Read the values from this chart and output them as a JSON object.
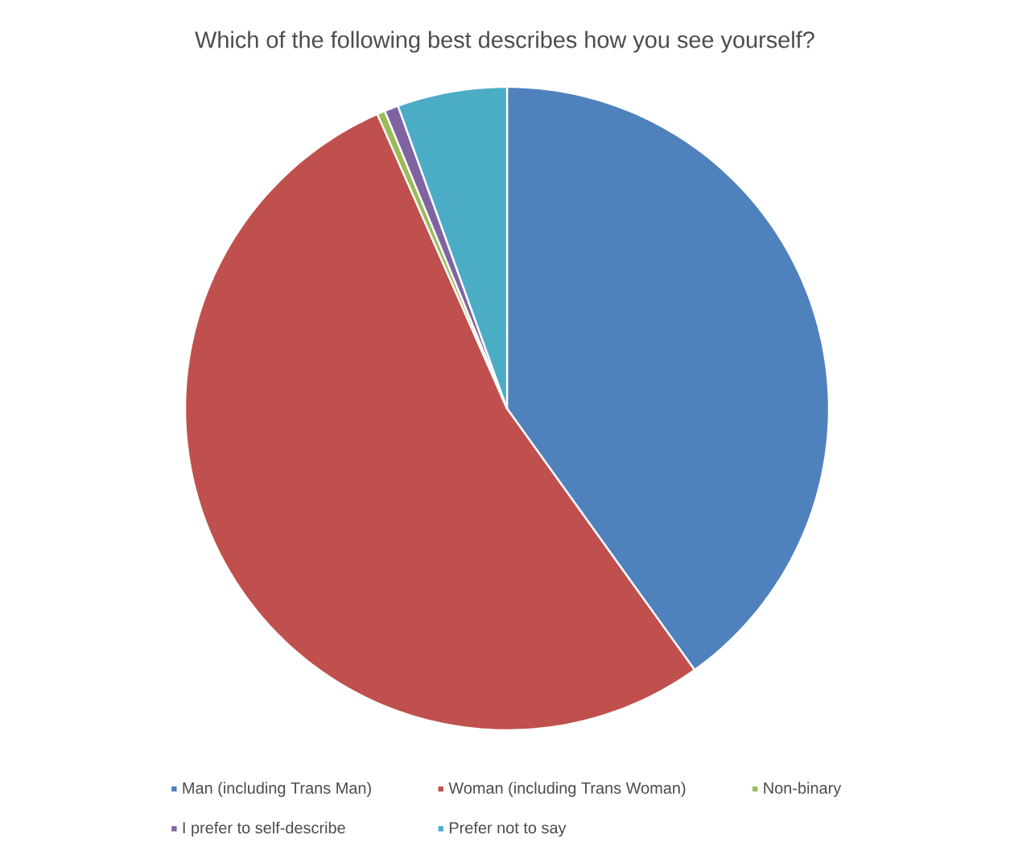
{
  "chart_data": {
    "type": "pie",
    "title": "Which of the following best describes how you see yourself?",
    "categories": [
      "Man (including Trans Man)",
      "Woman (including Trans Woman)",
      "Non-binary",
      "I prefer to self-describe",
      "Prefer not to say"
    ],
    "values": [
      40.1,
      53.3,
      0.4,
      0.7,
      5.5
    ],
    "colors": [
      "#4f81bd",
      "#c0504d",
      "#9bbb59",
      "#8064a2",
      "#4bacc6"
    ],
    "legend": "bottom"
  }
}
